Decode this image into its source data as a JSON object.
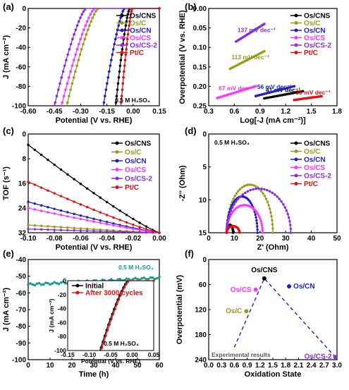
{
  "figure": {
    "panel_labels": [
      "(a)",
      "(b)",
      "(c)",
      "(d)",
      "(e)",
      "(f)"
    ],
    "series_names": [
      "Os/CNS",
      "Os/C",
      "Os/CN",
      "Os/CS",
      "Os/CS-2",
      "Pt/C"
    ],
    "colors": {
      "Os/CNS": "#000000",
      "Os/C": "#9a9a1a",
      "Os/CN": "#1c1cd0",
      "Os/CS": "#ff33ff",
      "Os/CS-2": "#8a2be2",
      "Pt/C": "#e01010",
      "teal": "#1a9a90",
      "red_stability": "#e01010"
    }
  },
  "chart_data": [
    {
      "panel": "(a)",
      "type": "line",
      "xlabel": "Potential (V vs. RHE)",
      "ylabel": "J (mA cm⁻²)",
      "xlim": [
        -0.6,
        0.15
      ],
      "ylim": [
        -100,
        0
      ],
      "xticks": [
        "-0.60",
        "-0.45",
        "-0.30",
        "-0.15",
        "0.00",
        "0.15"
      ],
      "yticks": [
        "0",
        "-20",
        "-40",
        "-60",
        "-80",
        "-100"
      ],
      "annotation": "0.5 M H₂SO₄",
      "legend": "top-right",
      "onset": {
        "Os/CNS": -0.02,
        "Os/C": -0.2,
        "Os/CN": -0.05,
        "Os/CS": -0.22,
        "Os/CS-2": -0.27,
        "Pt/C": -0.005
      },
      "at_minus100": {
        "Os/CNS": -0.1,
        "Os/C": -0.38,
        "Os/CN": -0.17,
        "Os/CS": -0.41,
        "Os/CS-2": -0.45,
        "Pt/C": -0.07
      }
    },
    {
      "panel": "(b)",
      "type": "scatter",
      "xlabel": "Log[-J (mA cm⁻²)]",
      "ylabel": "Overpotential (V vs. RHE)",
      "xlim": [
        0.3,
        1.8
      ],
      "ylim": [
        0,
        0.25
      ],
      "xticks": [
        "0.3",
        "0.6",
        "0.9",
        "1.2",
        "1.5",
        "1.8"
      ],
      "yticks": [
        "0.00",
        "0.05",
        "0.10",
        "0.15",
        "0.20",
        "0.25"
      ],
      "legend": "top-right",
      "tafel": [
        {
          "name": "Os/CNS",
          "x0": 0.95,
          "x1": 1.4,
          "y0": 0.019,
          "slope": 0.041,
          "label": "41 mV dec⁻¹"
        },
        {
          "name": "Os/C",
          "x0": 0.55,
          "x1": 0.95,
          "y0": 0.095,
          "slope": 0.113,
          "label": "113 mV dec⁻¹"
        },
        {
          "name": "Os/CN",
          "x0": 0.85,
          "x1": 1.3,
          "y0": 0.025,
          "slope": 0.056,
          "label": "56 mV dec⁻¹"
        },
        {
          "name": "Os/CS",
          "x0": 0.4,
          "x1": 0.85,
          "y0": 0.02,
          "slope": 0.067,
          "label": "67 mV dec⁻¹"
        },
        {
          "name": "Os/CS-2",
          "x0": 0.62,
          "x1": 0.95,
          "y0": 0.165,
          "slope": 0.137,
          "label": "137 mV dec⁻¹"
        },
        {
          "name": "Pt/C",
          "x0": 1.3,
          "x1": 1.62,
          "y0": 0.015,
          "slope": 0.03,
          "label": "30 mV dec⁻¹"
        }
      ]
    },
    {
      "panel": "(c)",
      "type": "line",
      "xlabel": "Potential (V vs. RHE)",
      "ylabel": "TOF (s⁻¹)",
      "xlim": [
        -0.1,
        0.0
      ],
      "ylim": [
        0,
        32
      ],
      "xticks": [
        "-0.10",
        "-0.08",
        "-0.06",
        "-0.04",
        "-0.02",
        "0.00"
      ],
      "yticks": [
        "0",
        "8",
        "16",
        "24",
        "32"
      ],
      "legend": "right",
      "tof_at_minus010": {
        "Os/CNS": 28.5,
        "Os/C": 2.5,
        "Os/CN": 10.0,
        "Os/CS": 8.0,
        "Os/CS-2": 1.2,
        "Pt/C": 16.5
      }
    },
    {
      "panel": "(d)",
      "type": "scatter",
      "xlabel": "Z' (Ohm)",
      "ylabel": "-Z'' (Ohm)",
      "xlim": [
        0,
        50
      ],
      "ylim": [
        0,
        15
      ],
      "xticks": [
        "0",
        "10",
        "20",
        "30",
        "40",
        "50"
      ],
      "yticks": [
        "0",
        "5",
        "10",
        "15"
      ],
      "annotation": "0.5 M H₂SO₄",
      "legend": "top-right",
      "nyquist": [
        {
          "name": "Os/CNS",
          "start": 7.0,
          "end": 9.5,
          "peak": 1.2
        },
        {
          "name": "Os/C",
          "start": 7.0,
          "end": 25.0,
          "peak": 7.3
        },
        {
          "name": "Os/CN",
          "start": 7.0,
          "end": 19.0,
          "peak": 5.5
        },
        {
          "name": "Os/CS",
          "start": 7.0,
          "end": 21.0,
          "peak": 4.2
        },
        {
          "name": "Os/CS-2",
          "start": 7.0,
          "end": 32.0,
          "peak": 6.7
        },
        {
          "name": "Pt/C",
          "start": 7.0,
          "end": 12.0,
          "peak": 1.0
        }
      ]
    },
    {
      "panel": "(e)",
      "type": "line",
      "xlabel": "Time (h)",
      "ylabel": "J (mA cm⁻²)",
      "xlim": [
        0,
        60
      ],
      "ylim": [
        -100,
        -40
      ],
      "xticks": [
        "0",
        "10",
        "20",
        "30",
        "40",
        "50",
        "60"
      ],
      "yticks": [
        "-40",
        "-50",
        "-60",
        "-70",
        "-80",
        "-90",
        "-100"
      ],
      "annotation": "0.5 M H₂SO₄",
      "stability": {
        "start": -55,
        "end": -51
      },
      "inset": {
        "xlabel": "Potential (V vs. RHE)",
        "ylabel": "J (mA cm⁻²)",
        "xlim": [
          -0.15,
          0.05
        ],
        "ylim": [
          -100,
          0
        ],
        "xticks": [
          "-0.15",
          "-0.10",
          "-0.05",
          "0.00",
          "0.05"
        ],
        "yticks": [
          "0",
          "-20",
          "-40",
          "-60",
          "-80",
          "-100"
        ],
        "legend": [
          "Initial",
          "After 3000 cycles"
        ],
        "annotation": "0.5 M H₂SO₄",
        "onset": -0.01,
        "at_minus100": -0.075
      }
    },
    {
      "panel": "(f)",
      "type": "scatter",
      "xlabel": "Oxidation State",
      "ylabel": "Overpotential (mV)",
      "xlim": [
        0.0,
        3.0
      ],
      "ylim": [
        0,
        240
      ],
      "xticks": [
        "0.0",
        "0.3",
        "0.6",
        "0.9",
        "1.2",
        "1.5",
        "1.8",
        "2.1",
        "2.4",
        "2.7",
        "3.0"
      ],
      "yticks": [
        "0",
        "60",
        "120",
        "180",
        "240"
      ],
      "annotation": "Experimental results",
      "points": [
        {
          "name": "Os/CNS",
          "x": 1.3,
          "y": 24
        },
        {
          "name": "Os/CS",
          "x": 1.1,
          "y": 54
        },
        {
          "name": "Os/CN",
          "x": 1.88,
          "y": 45
        },
        {
          "name": "Os/C",
          "x": 0.88,
          "y": 111
        },
        {
          "name": "Os/CS-2",
          "x": 2.96,
          "y": 233
        }
      ]
    }
  ]
}
